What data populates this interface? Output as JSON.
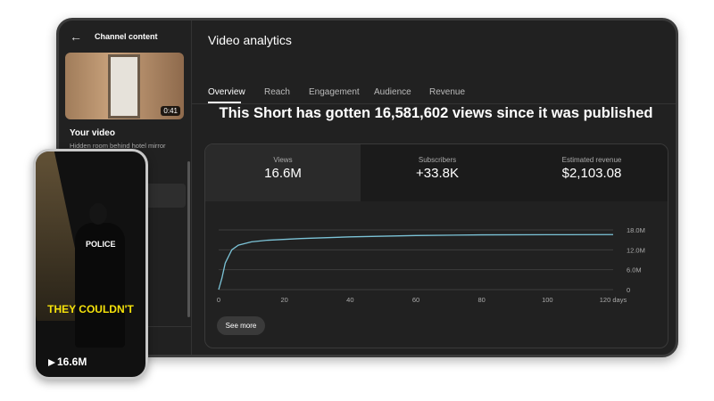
{
  "sidebar": {
    "title": "Channel content",
    "duration": "0:41",
    "your_video": "Your video",
    "video_title": "Hidden room behind hotel mirror"
  },
  "header": {
    "title": "Video analytics"
  },
  "tabs": [
    "Overview",
    "Reach",
    "Engagement",
    "Audience",
    "Revenue"
  ],
  "headline": "This Short has gotten 16,581,602 views since it was published",
  "metrics": [
    {
      "label": "Views",
      "value": "16.6M"
    },
    {
      "label": "Subscribers",
      "value": "+33.8K"
    },
    {
      "label": "Estimated revenue",
      "value": "$2,103.08"
    }
  ],
  "chart_data": {
    "type": "line",
    "x": [
      0,
      1,
      2,
      4,
      6,
      10,
      15,
      25,
      40,
      60,
      80,
      100,
      120
    ],
    "values": [
      0,
      3500000,
      8000000,
      12000000,
      13400000,
      14400000,
      14900000,
      15400000,
      15900000,
      16300000,
      16500000,
      16550000,
      16580000
    ],
    "color": "#7cc4d8",
    "xlim": [
      0,
      120
    ],
    "xticks": [
      0,
      20,
      40,
      60,
      80,
      100,
      {
        "value": 120,
        "label": "120 days"
      }
    ],
    "ylim": [
      0,
      18000000
    ],
    "yticks": [
      0,
      {
        "value": 6000000,
        "label": "6.0M"
      },
      {
        "value": 12000000,
        "label": "12.0M"
      },
      {
        "value": 18000000,
        "label": "18.0M"
      }
    ],
    "grid": true
  },
  "button": "See more",
  "phone": {
    "badge": "POLICE",
    "caption": "THEY COULDN'T",
    "views": "16.6M"
  }
}
